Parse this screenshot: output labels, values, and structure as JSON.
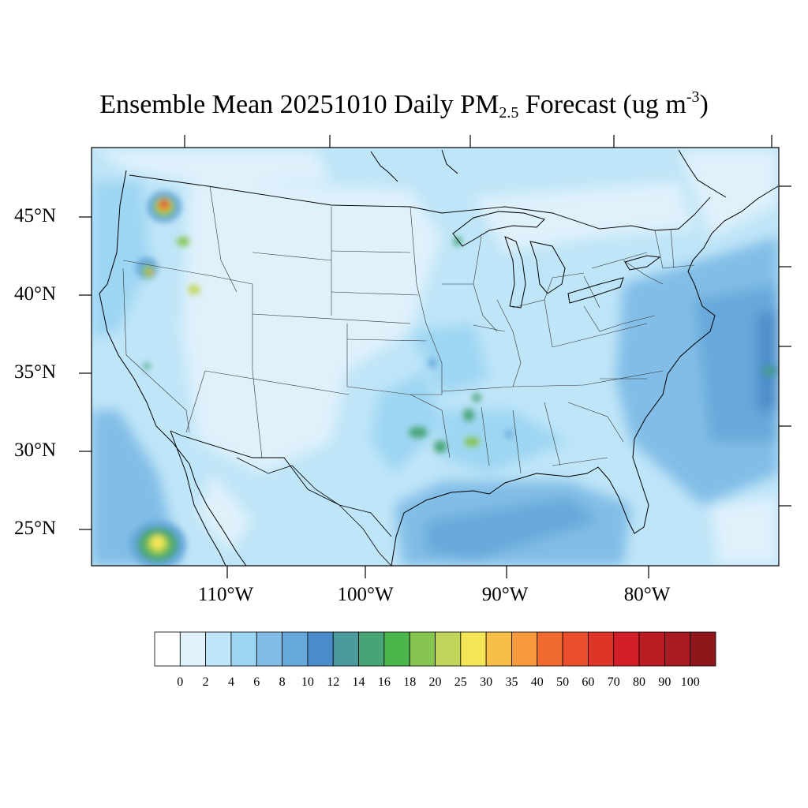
{
  "title": {
    "prefix": "Ensemble Mean 20251010 Daily PM",
    "subscript": "2.5",
    "middle": " Forecast (ug m",
    "superscript": "-3",
    "suffix": ")"
  },
  "latitude_labels": [
    "45°N",
    "40°N",
    "35°N",
    "30°N",
    "25°N"
  ],
  "longitude_labels": [
    "110°W",
    "100°W",
    "90°W",
    "80°W"
  ],
  "colorbar": {
    "labels": [
      "0",
      "2",
      "4",
      "6",
      "8",
      "10",
      "12",
      "14",
      "16",
      "18",
      "20",
      "25",
      "30",
      "35",
      "40",
      "50",
      "60",
      "70",
      "80",
      "90",
      "100"
    ],
    "colors": [
      "#ffffff",
      "#dff1fb",
      "#bfe5f8",
      "#9dd6f3",
      "#81bde6",
      "#67a8da",
      "#4b8bc9",
      "#4a9a9e",
      "#47a474",
      "#4bb64b",
      "#86c550",
      "#c2d55a",
      "#f5e658",
      "#f8bf48",
      "#f69a3d",
      "#f26b2e",
      "#ea4e2c",
      "#df3528",
      "#d21f27",
      "#bb1c24",
      "#a81c21",
      "#8f171c"
    ]
  },
  "legend_label_positions": "below colorbar"
}
